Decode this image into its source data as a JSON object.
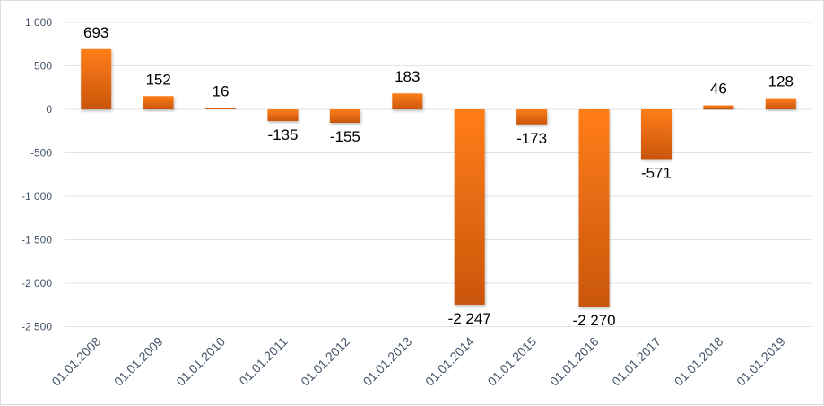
{
  "chart_data": {
    "type": "bar",
    "title": "",
    "xlabel": "",
    "ylabel": "",
    "categories": [
      "01.01.2008",
      "01.01.2009",
      "01.01.2010",
      "01.01.2011",
      "01.01.2012",
      "01.01.2013",
      "01.01.2014",
      "01.01.2015",
      "01.01.2016",
      "01.01.2017",
      "01.01.2018",
      "01.01.2019"
    ],
    "values": [
      693,
      152,
      16,
      -135,
      -155,
      183,
      -2247,
      -173,
      -2270,
      -571,
      46,
      128
    ],
    "value_labels": [
      "693",
      "152",
      "16",
      "-135",
      "-155",
      "183",
      "-2 247",
      "-173",
      "-2 270",
      "-571",
      "46",
      "128"
    ],
    "ylim": [
      -2500,
      1000
    ],
    "yticks": [
      1000,
      500,
      0,
      -500,
      -1000,
      -1500,
      -2000,
      -2500
    ],
    "ytick_labels": [
      "1 000",
      "500",
      "0",
      "-500",
      "-1 000",
      "-1 500",
      "-2 000",
      "-2 500"
    ],
    "grid": true,
    "legend": "none",
    "colors": {
      "bar_top": "#ff7d15",
      "bar_bottom": "#c9560f",
      "grid": "#e0e3e8",
      "axis_text": "#44546a"
    }
  }
}
